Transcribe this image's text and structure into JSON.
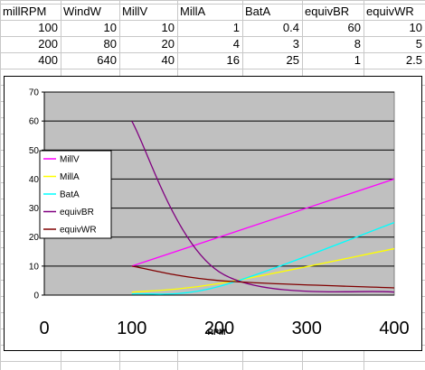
{
  "sheet": {
    "headers": [
      "millRPM",
      "WindW",
      "MillV",
      "MillA",
      "BatA",
      "equivBR",
      "equivWR"
    ],
    "rows": [
      [
        "100",
        "10",
        "10",
        "1",
        "0.4",
        "60",
        "10"
      ],
      [
        "200",
        "80",
        "20",
        "4",
        "3",
        "8",
        "5"
      ],
      [
        "400",
        "640",
        "40",
        "16",
        "25",
        "1",
        "2.5"
      ]
    ]
  },
  "chart_data": {
    "type": "line",
    "xlabel": "RPM",
    "ylabel": "",
    "xlim": [
      0,
      400
    ],
    "ylim": [
      0,
      70
    ],
    "x_ticks": [
      "0",
      "100",
      "200",
      "300",
      "400"
    ],
    "y_ticks": [
      "0",
      "10",
      "20",
      "30",
      "40",
      "50",
      "60",
      "70"
    ],
    "grid": "horizontal",
    "legend_position": "left",
    "plot_background": "#c0c0c0",
    "series": [
      {
        "name": "MillV",
        "color": "#ff00ff",
        "x": [
          100,
          200,
          400
        ],
        "values": [
          10,
          20,
          40
        ]
      },
      {
        "name": "MillA",
        "color": "#ffff00",
        "x": [
          100,
          200,
          400
        ],
        "values": [
          1,
          4,
          16
        ]
      },
      {
        "name": "BatA",
        "color": "#00ffff",
        "x": [
          100,
          200,
          400
        ],
        "values": [
          0.4,
          3,
          25
        ]
      },
      {
        "name": "equivBR",
        "color": "#800080",
        "x": [
          100,
          200,
          400
        ],
        "values": [
          60,
          8,
          1
        ]
      },
      {
        "name": "equivWR",
        "color": "#800000",
        "x": [
          100,
          200,
          400
        ],
        "values": [
          10,
          5,
          2.5
        ]
      }
    ]
  }
}
